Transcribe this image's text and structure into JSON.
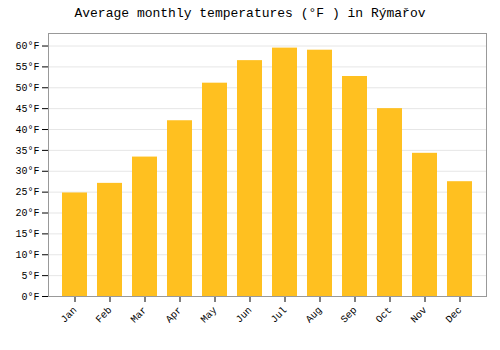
{
  "chart_data": {
    "type": "bar",
    "title": "Average monthly temperatures (°F ) in Rýmařov",
    "categories": [
      "Jan",
      "Feb",
      "Mar",
      "Apr",
      "May",
      "Jun",
      "Jul",
      "Aug",
      "Sep",
      "Oct",
      "Nov",
      "Dec"
    ],
    "values": [
      24.8,
      27.1,
      33.4,
      42.1,
      51.1,
      56.5,
      59.5,
      59.0,
      52.7,
      45.0,
      34.3,
      27.5
    ],
    "color": "#FFC020",
    "ylim": [
      0,
      63
    ],
    "yticks": [
      {
        "value": 0,
        "label": "0°F"
      },
      {
        "value": 5,
        "label": "5°F"
      },
      {
        "value": 10,
        "label": "10°F"
      },
      {
        "value": 15,
        "label": "15°F"
      },
      {
        "value": 20,
        "label": "20°F"
      },
      {
        "value": 25,
        "label": "25°F"
      },
      {
        "value": 30,
        "label": "30°F"
      },
      {
        "value": 35,
        "label": "35°F"
      },
      {
        "value": 40,
        "label": "40°F"
      },
      {
        "value": 45,
        "label": "45°F"
      },
      {
        "value": 50,
        "label": "50°F"
      },
      {
        "value": 55,
        "label": "55°F"
      },
      {
        "value": 60,
        "label": "60°F"
      }
    ],
    "grid": true
  }
}
